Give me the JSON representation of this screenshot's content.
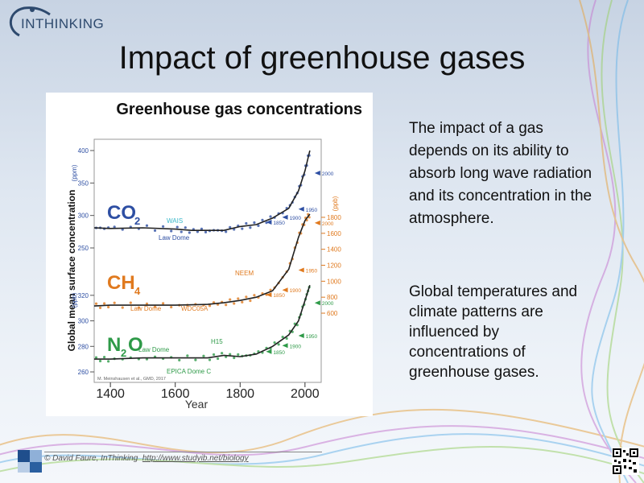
{
  "slide": {
    "logo_text": "INTHINKING",
    "title": "Impact of greenhouse gases",
    "paragraph1": "The impact of a gas depends on its ability to absorb long wave radiation and its concentration in the atmosphere.",
    "paragraph2": "Global temperatures and climate patterns are influenced by concentrations of greenhouse gases.",
    "footer_credit": "© David Faure, InThinking",
    "footer_link": "http://www.studyib.net/biology"
  },
  "colors": {
    "co2": "#2e4fa3",
    "co2_light": "#3bb8c9",
    "ch4": "#e07a1f",
    "n2o": "#2e9a48",
    "fit": "#222222",
    "grey": "#888888",
    "n2o_title": "#2e9a48"
  },
  "chart_data": {
    "type": "line",
    "title": "Greenhouse gas concentrations",
    "xlabel": "Year",
    "ylabel": "Global mean surface concentration",
    "xlim": [
      1350,
      2050
    ],
    "x_ticks": [
      1400,
      1600,
      1800,
      2000
    ],
    "credit": "M. Meinshausen et al., GMD, 2017",
    "panels": [
      {
        "gas": "CO2",
        "label_main": "CO",
        "label_sub": "2",
        "unit": "(ppm)",
        "axis_side": "left",
        "ticks": [
          250,
          300,
          350,
          400
        ],
        "x": [
          1350,
          1400,
          1500,
          1600,
          1650,
          1700,
          1750,
          1800,
          1850,
          1900,
          1950,
          1980,
          2000,
          2015
        ],
        "values": [
          281,
          280,
          281,
          279,
          277,
          277,
          277,
          283,
          286,
          296,
          311,
          338,
          369,
          400
        ],
        "datasets": [
          "WAIS",
          "Law Dome"
        ],
        "annotations": [
          {
            "year": 1850,
            "label": "1850"
          },
          {
            "year": 1900,
            "label": "1900"
          },
          {
            "year": 1950,
            "label": "1950"
          },
          {
            "year": 2000,
            "label": "2000"
          }
        ]
      },
      {
        "gas": "CH4",
        "label_main": "CH",
        "label_sub": "4",
        "unit": "(ppb)",
        "axis_side": "right",
        "ticks": [
          600,
          800,
          1000,
          1200,
          1400,
          1600,
          1800
        ],
        "x": [
          1350,
          1400,
          1500,
          1600,
          1700,
          1750,
          1800,
          1850,
          1900,
          1950,
          1980,
          2000,
          2015
        ],
        "values": [
          690,
          700,
          700,
          700,
          710,
          730,
          760,
          800,
          880,
          1150,
          1550,
          1760,
          1840
        ],
        "datasets": [
          "NEEM",
          "Law Dome",
          "WDC05A"
        ],
        "annotations": [
          {
            "year": 1850,
            "label": "1850"
          },
          {
            "year": 1900,
            "label": "1900"
          },
          {
            "year": 1950,
            "label": "1950"
          },
          {
            "year": 2000,
            "label": "2000"
          }
        ]
      },
      {
        "gas": "N2O",
        "label_main": "N",
        "label_mid": "2",
        "label_tail": "O",
        "unit": "(ppb)",
        "axis_side": "left",
        "ticks": [
          260,
          280,
          300,
          320
        ],
        "x": [
          1350,
          1400,
          1500,
          1600,
          1700,
          1750,
          1800,
          1850,
          1900,
          1950,
          1980,
          2000,
          2015
        ],
        "values": [
          270,
          270,
          271,
          271,
          271,
          273,
          272,
          274,
          280,
          289,
          300,
          316,
          328
        ],
        "datasets": [
          "Law Dome",
          "H15",
          "EPICA Dome C"
        ],
        "annotations": [
          {
            "year": 1850,
            "label": "1850"
          },
          {
            "year": 1900,
            "label": "1900"
          },
          {
            "year": 1950,
            "label": "1950"
          },
          {
            "year": 2000,
            "label": "2000"
          }
        ]
      }
    ]
  }
}
